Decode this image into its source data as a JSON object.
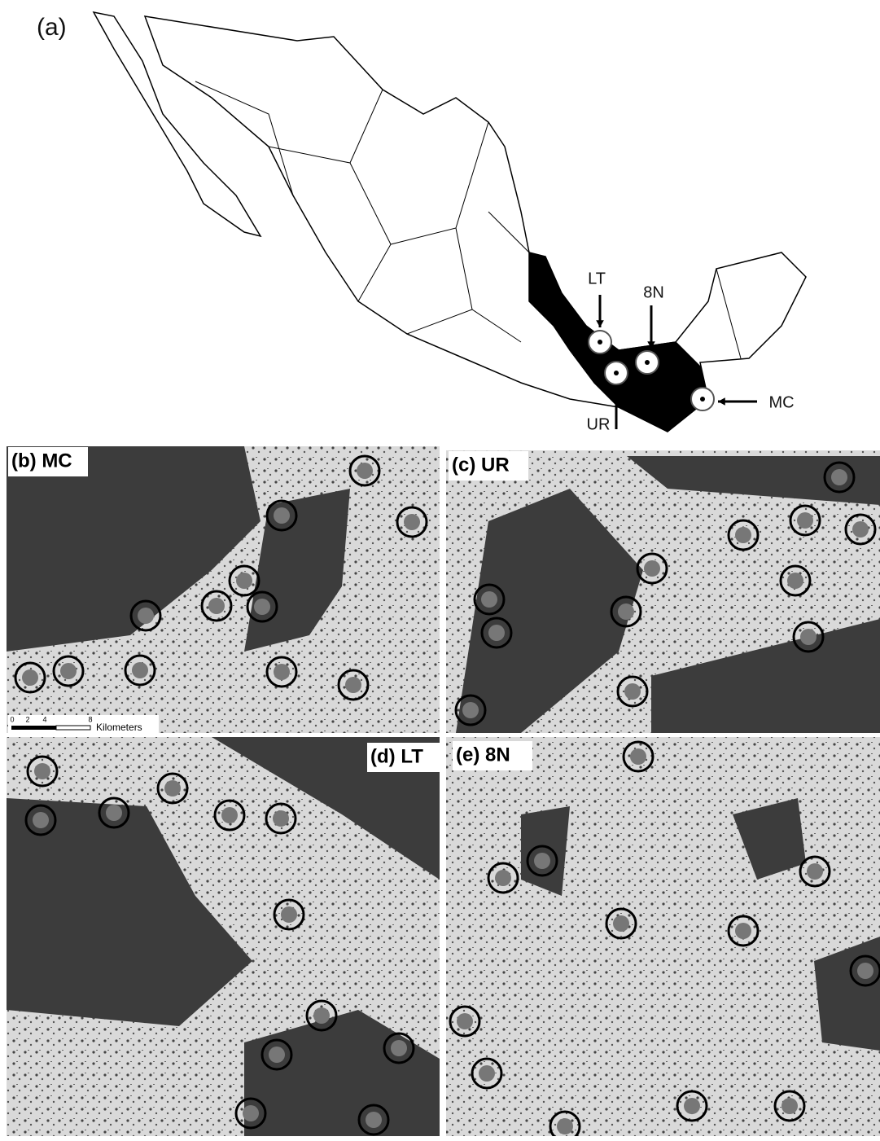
{
  "panel_a": {
    "label": "(a)",
    "sites": [
      {
        "label": "LT"
      },
      {
        "label": "8N"
      },
      {
        "label": "UR"
      },
      {
        "label": "MC"
      }
    ]
  },
  "panels": [
    {
      "label": "(b) MC"
    },
    {
      "label": "(c) UR"
    },
    {
      "label": "(d) LT"
    },
    {
      "label": "(e) 8N"
    }
  ],
  "scale_bar": {
    "ticks": [
      0,
      2,
      4,
      8
    ],
    "unit": "Kilometers"
  }
}
